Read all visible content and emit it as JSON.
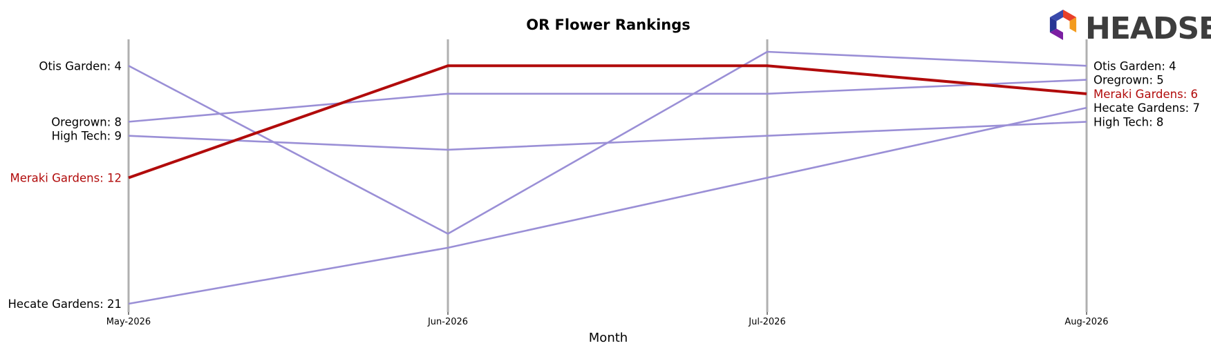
{
  "chart_data": {
    "type": "line",
    "title": "OR Flower Rankings",
    "xlabel": "Month",
    "ylabel": "",
    "categories": [
      "May-2026",
      "Jun-2026",
      "Jul-2026",
      "Aug-2026"
    ],
    "ylim_rank": [
      2.2,
      21.5
    ],
    "y_inverted": true,
    "grid": false,
    "series": [
      {
        "name": "Otis Garden",
        "values": [
          4,
          16,
          3,
          4
        ],
        "highlight": false,
        "color": "#9a8fd6"
      },
      {
        "name": "Oregrown",
        "values": [
          8,
          6,
          6,
          5
        ],
        "highlight": false,
        "color": "#9a8fd6"
      },
      {
        "name": "High Tech",
        "values": [
          9,
          10,
          9,
          8
        ],
        "highlight": false,
        "color": "#9a8fd6"
      },
      {
        "name": "Hecate Gardens",
        "values": [
          21,
          17,
          12,
          7
        ],
        "highlight": false,
        "color": "#9a8fd6"
      },
      {
        "name": "Meraki Gardens",
        "values": [
          12,
          4,
          4,
          6
        ],
        "highlight": true,
        "color": "#b10b0b"
      }
    ],
    "left_labels": [
      {
        "text": "Otis Garden: 4",
        "rank": 4,
        "highlight": false
      },
      {
        "text": "Oregrown: 8",
        "rank": 8,
        "highlight": false
      },
      {
        "text": "High Tech: 9",
        "rank": 9,
        "highlight": false
      },
      {
        "text": "Meraki Gardens: 12",
        "rank": 12,
        "highlight": true
      },
      {
        "text": "Hecate Gardens: 21",
        "rank": 21,
        "highlight": false
      }
    ],
    "right_labels": [
      {
        "text": "Otis Garden: 4",
        "rank": 4,
        "highlight": false
      },
      {
        "text": "Oregrown: 5",
        "rank": 5,
        "highlight": false
      },
      {
        "text": "Meraki Gardens: 6",
        "rank": 6,
        "highlight": true
      },
      {
        "text": "Hecate Gardens: 7",
        "rank": 7,
        "highlight": false
      },
      {
        "text": "High Tech: 8",
        "rank": 8,
        "highlight": false
      }
    ]
  },
  "logo": {
    "text": "HEADSET",
    "colors": [
      "#e8402a",
      "#f39c1f",
      "#c2185b",
      "#7b1fa2",
      "#283593",
      "#3949ab"
    ]
  },
  "colors": {
    "month_line": "#b0b0b0",
    "highlight_text": "#b10b0b",
    "normal_text": "#000000"
  }
}
